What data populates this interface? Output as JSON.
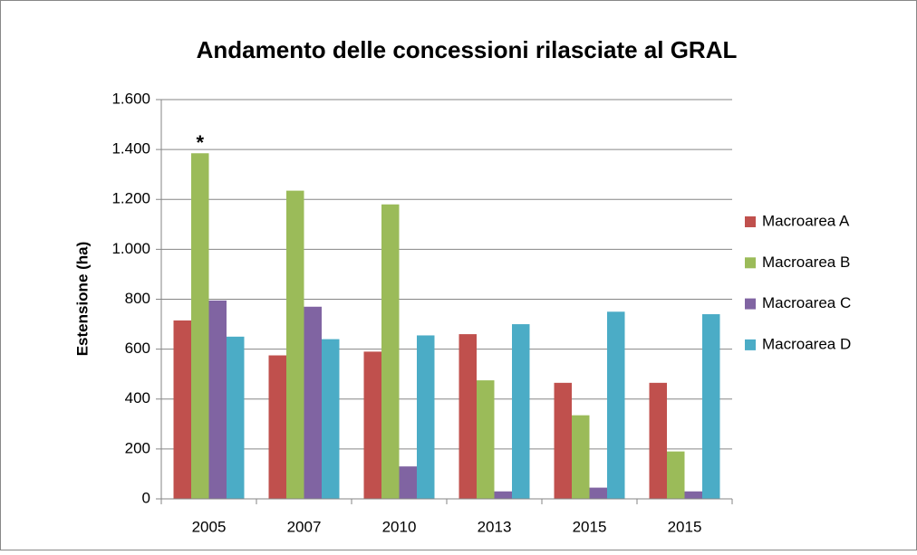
{
  "chart_data": {
    "type": "bar",
    "title": "Andamento delle concessioni rilasciate al GRAL",
    "y_label": "Estensione (ha)",
    "categories": [
      "2005",
      "2007",
      "2010",
      "2013",
      "2015",
      "2015"
    ],
    "series": [
      {
        "name": "Macroarea A",
        "color": "#c0504d",
        "values": [
          715,
          575,
          590,
          660,
          465,
          465
        ]
      },
      {
        "name": "Macroarea B",
        "color": "#9bbb59",
        "values": [
          1385,
          1235,
          1180,
          475,
          335,
          190
        ]
      },
      {
        "name": "Macroarea C",
        "color": "#8064a2",
        "values": [
          795,
          770,
          130,
          30,
          45,
          30
        ]
      },
      {
        "name": "Macroarea D",
        "color": "#4bacc6",
        "values": [
          650,
          640,
          655,
          700,
          750,
          740
        ]
      }
    ],
    "annotations": [
      {
        "text": "*",
        "category": 0,
        "series": 1
      }
    ],
    "ylim": [
      0,
      1600
    ],
    "yticks": [
      0,
      200,
      400,
      600,
      800,
      {
        "value": 1000,
        "label": "1.000"
      },
      {
        "value": 1200,
        "label": "1.200"
      },
      {
        "value": 1400,
        "label": "1.400"
      },
      {
        "value": 1600,
        "label": "1.600"
      }
    ],
    "grid": true,
    "legend": "right"
  }
}
